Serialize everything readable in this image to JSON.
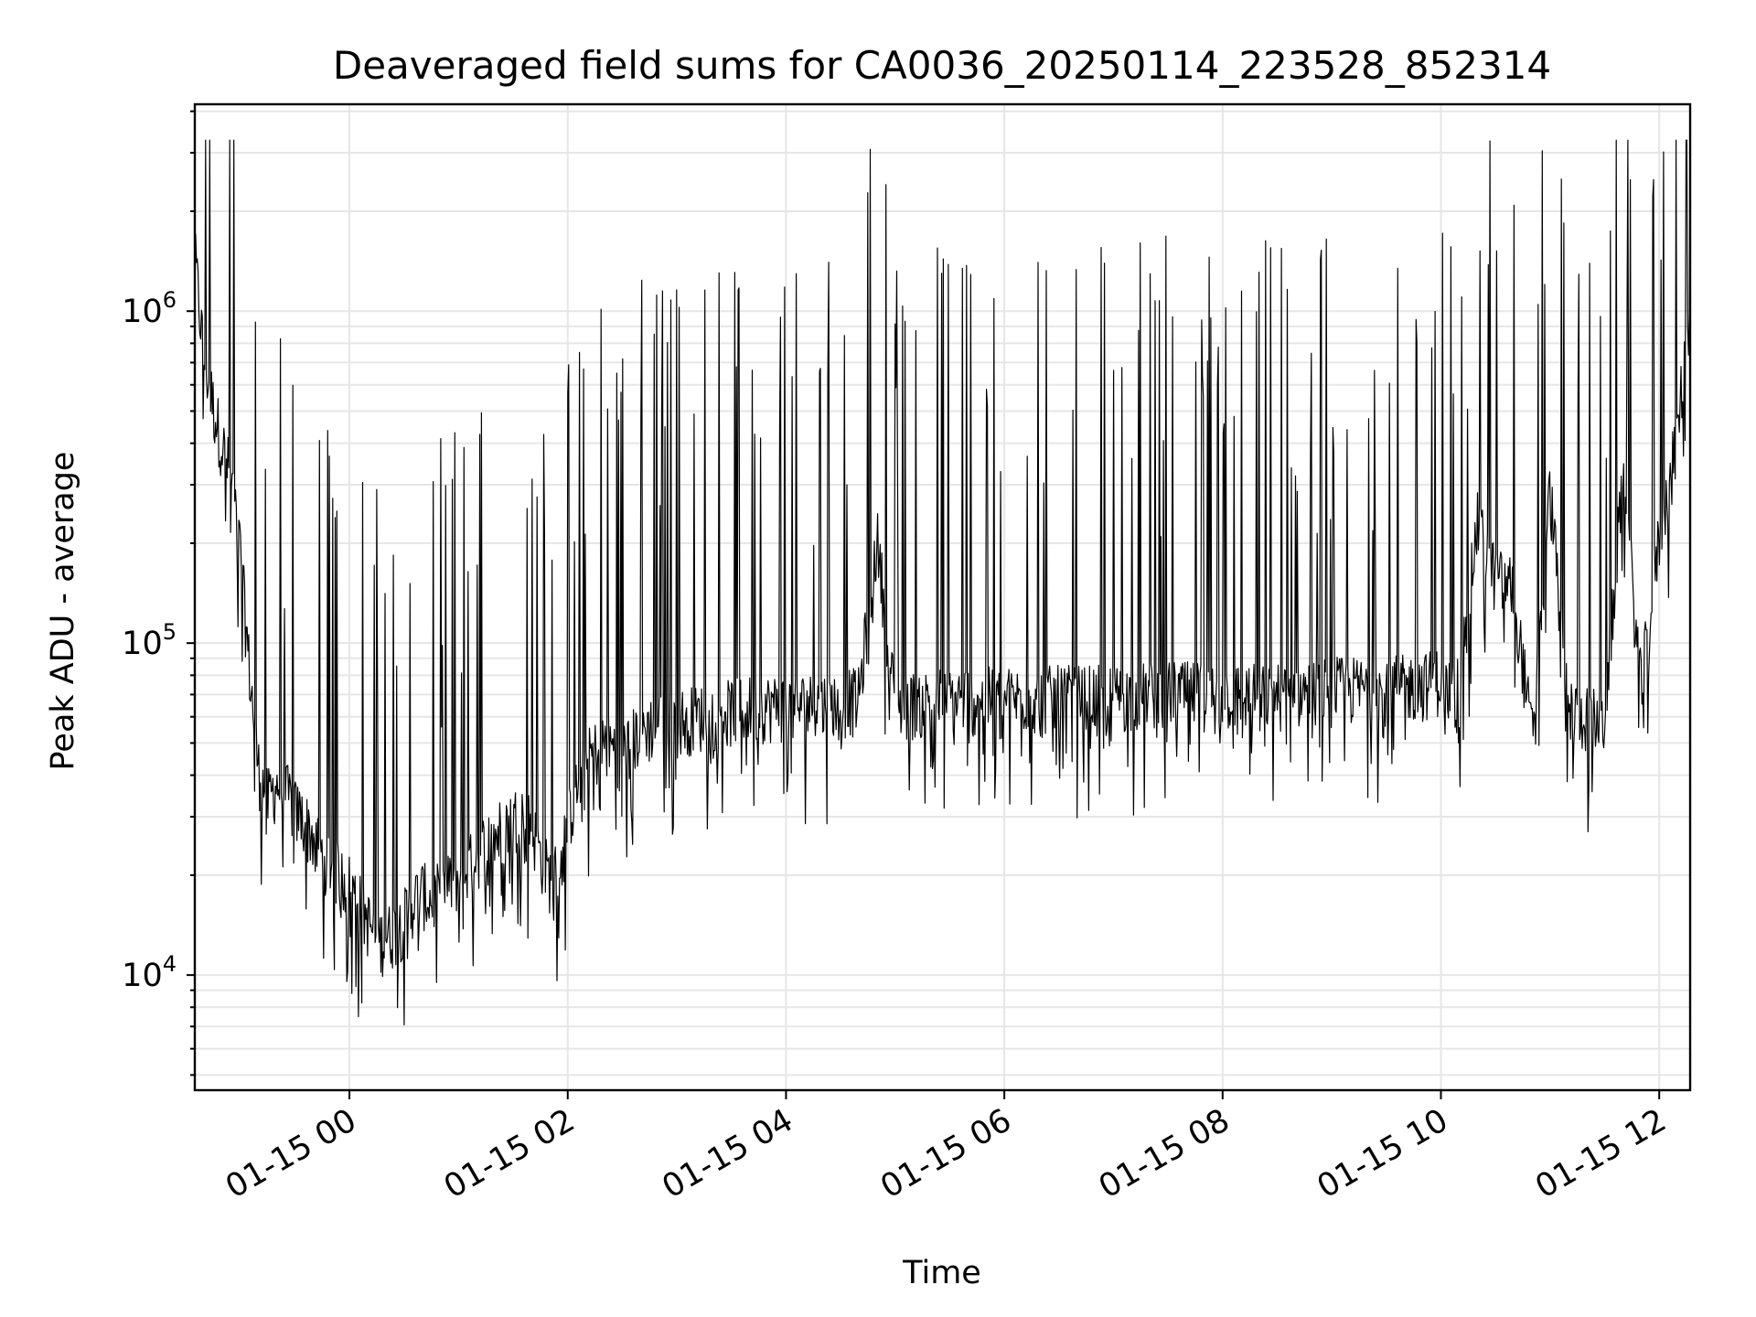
{
  "chart_data": {
    "type": "line",
    "title": "Deaveraged field sums for CA0036_20250114_223528_852314",
    "xlabel": "Time",
    "ylabel": "Peak ADU - average",
    "yscale": "log",
    "ylim": [
      4500,
      4200000
    ],
    "xlim": [
      "2025-01-14 22:35",
      "2025-01-15 12:17"
    ],
    "grid": true,
    "grid_minor": true,
    "line_color": "#000000",
    "x_ticks": [
      {
        "value": "2025-01-15 00:00",
        "label": "01-15 00"
      },
      {
        "value": "2025-01-15 02:00",
        "label": "01-15 02"
      },
      {
        "value": "2025-01-15 04:00",
        "label": "01-15 04"
      },
      {
        "value": "2025-01-15 06:00",
        "label": "01-15 06"
      },
      {
        "value": "2025-01-15 08:00",
        "label": "01-15 08"
      },
      {
        "value": "2025-01-15 10:00",
        "label": "01-15 10"
      },
      {
        "value": "2025-01-15 12:00",
        "label": "01-15 12"
      }
    ],
    "y_ticks": [
      {
        "value": 10000,
        "base": "10",
        "exp": "4"
      },
      {
        "value": 100000,
        "base": "10",
        "exp": "5"
      },
      {
        "value": 1000000,
        "base": "10",
        "exp": "6"
      }
    ],
    "series": [
      {
        "x": [
          "2025-01-14 22:35",
          "2025-01-14 22:40",
          "2025-01-14 22:45",
          "2025-01-14 22:50",
          "2025-01-14 22:55",
          "2025-01-14 23:00",
          "2025-01-14 23:05",
          "2025-01-14 23:10",
          "2025-01-14 23:15",
          "2025-01-14 23:20",
          "2025-01-14 23:25",
          "2025-01-14 23:30",
          "2025-01-14 23:35",
          "2025-01-14 23:40",
          "2025-01-14 23:45",
          "2025-01-14 23:50",
          "2025-01-14 23:55",
          "2025-01-15 00:00",
          "2025-01-15 00:05",
          "2025-01-15 00:10",
          "2025-01-15 00:15",
          "2025-01-15 00:20",
          "2025-01-15 00:25",
          "2025-01-15 00:30",
          "2025-01-15 00:35",
          "2025-01-15 00:40",
          "2025-01-15 00:45",
          "2025-01-15 00:50",
          "2025-01-15 00:55",
          "2025-01-15 01:00",
          "2025-01-15 01:05",
          "2025-01-15 01:10",
          "2025-01-15 01:15",
          "2025-01-15 01:20",
          "2025-01-15 01:25",
          "2025-01-15 01:30",
          "2025-01-15 01:35",
          "2025-01-15 01:40",
          "2025-01-15 01:45",
          "2025-01-15 01:50",
          "2025-01-15 01:55",
          "2025-01-15 02:00",
          "2025-01-15 02:10",
          "2025-01-15 02:20",
          "2025-01-15 02:30",
          "2025-01-15 02:40",
          "2025-01-15 02:50",
          "2025-01-15 03:00",
          "2025-01-15 03:15",
          "2025-01-15 03:30",
          "2025-01-15 03:45",
          "2025-01-15 04:00",
          "2025-01-15 04:20",
          "2025-01-15 04:40",
          "2025-01-15 04:50",
          "2025-01-15 05:00",
          "2025-01-15 05:30",
          "2025-01-15 06:00",
          "2025-01-15 06:30",
          "2025-01-15 07:00",
          "2025-01-15 07:30",
          "2025-01-15 08:00",
          "2025-01-15 08:30",
          "2025-01-15 09:00",
          "2025-01-15 09:30",
          "2025-01-15 09:50",
          "2025-01-15 10:00",
          "2025-01-15 10:10",
          "2025-01-15 10:20",
          "2025-01-15 10:30",
          "2025-01-15 10:40",
          "2025-01-15 10:50",
          "2025-01-15 11:00",
          "2025-01-15 11:10",
          "2025-01-15 11:20",
          "2025-01-15 11:30",
          "2025-01-15 11:40",
          "2025-01-15 11:50",
          "2025-01-15 12:00",
          "2025-01-15 12:10",
          "2025-01-15 12:17"
        ],
        "y": [
          1400000,
          700000,
          500000,
          380000,
          300000,
          180000,
          80000,
          40000,
          32000,
          36000,
          34000,
          30000,
          28000,
          25000,
          22000,
          21000,
          19000,
          18000,
          16000,
          14000,
          12000,
          12500,
          13000,
          14000,
          16000,
          17000,
          16000,
          17000,
          18000,
          19000,
          20000,
          22000,
          24000,
          25000,
          27000,
          28000,
          30000,
          27000,
          22000,
          19000,
          19500,
          28000,
          42000,
          48000,
          45000,
          52000,
          55000,
          56000,
          58000,
          60000,
          62000,
          62000,
          63000,
          65000,
          200000,
          62000,
          66000,
          65000,
          66000,
          66000,
          68000,
          67000,
          67000,
          70000,
          70000,
          72000,
          75000,
          70000,
          220000,
          150000,
          140000,
          50000,
          280000,
          60000,
          58000,
          55000,
          320000,
          70000,
          200000,
          420000,
          1000000
        ]
      }
    ]
  }
}
